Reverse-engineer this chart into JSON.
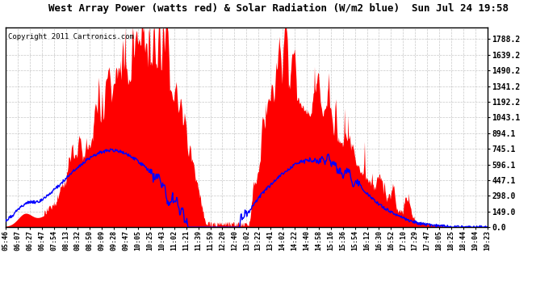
{
  "title": "West Array Power (watts red) & Solar Radiation (W/m2 blue)  Sun Jul 24 19:58",
  "copyright": "Copyright 2011 Cartronics.com",
  "yticks": [
    0.0,
    149.0,
    298.0,
    447.1,
    596.1,
    745.1,
    894.1,
    1043.1,
    1192.2,
    1341.2,
    1490.2,
    1639.2,
    1788.2
  ],
  "ymax": 1900,
  "xtick_labels": [
    "05:46",
    "06:07",
    "06:27",
    "06:47",
    "07:54",
    "08:13",
    "08:32",
    "08:50",
    "09:09",
    "09:28",
    "09:47",
    "10:05",
    "10:25",
    "10:43",
    "11:02",
    "11:21",
    "11:39",
    "11:59",
    "12:20",
    "12:40",
    "13:02",
    "13:22",
    "13:41",
    "14:02",
    "14:22",
    "14:40",
    "14:58",
    "15:16",
    "15:36",
    "15:54",
    "16:12",
    "16:30",
    "16:52",
    "17:10",
    "17:29",
    "17:47",
    "18:05",
    "18:25",
    "18:44",
    "19:04",
    "19:23"
  ],
  "bg_color": "#ffffff",
  "plot_bg": "#ffffff",
  "red_color": "#ff0000",
  "blue_color": "#0000ff",
  "grid_color": "#b0b0b0"
}
